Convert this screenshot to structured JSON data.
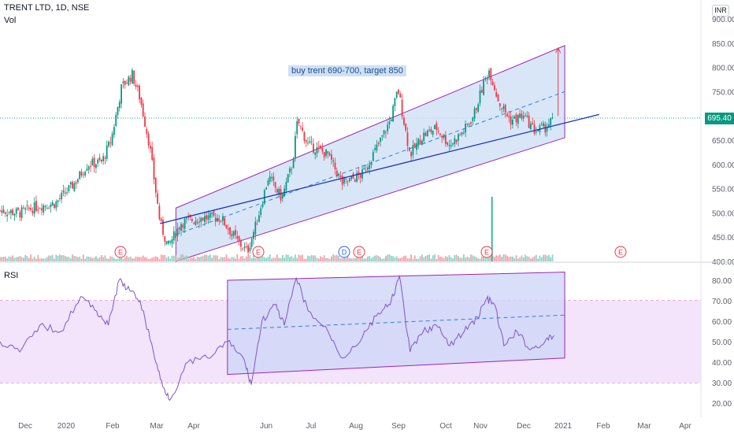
{
  "header": {
    "ticker": "TRENT LTD, 1D, NSE",
    "volume_label": "Vol",
    "rsi_label": "RSI",
    "currency": "INR",
    "last_price": "695.40"
  },
  "annotation": {
    "text": "buy trent 690-700, target 850"
  },
  "colors": {
    "up": "#089981",
    "down": "#f23645",
    "channel_fill": "#cfe0f6",
    "channel_border": "#9c27b0",
    "trendline": "#1f2fc6",
    "rsi_line": "#7e57c2",
    "rsi_band": "#f3e3fb",
    "price_line": "#26a69a"
  },
  "chart_data": [
    {
      "type": "candlestick",
      "title": "TRENT LTD, 1D, NSE",
      "x_axis_labels": [
        "Dec",
        "2020",
        "Feb",
        "Mar",
        "Apr",
        "Jun",
        "Jul",
        "Aug",
        "Sep",
        "Oct",
        "Nov",
        "Dec",
        "2021",
        "Feb",
        "Mar",
        "Apr"
      ],
      "y_axis_ticks": [
        "900.00",
        "850.00",
        "800.00",
        "750.00",
        "700.00",
        "650.00",
        "600.00",
        "550.00",
        "500.00",
        "450.00",
        "400.00"
      ],
      "ylim": [
        400,
        900
      ],
      "last_close": 695.4,
      "price_path": [
        {
          "x": "2019-11-20",
          "y": 505
        },
        {
          "x": "2019-12-05",
          "y": 500
        },
        {
          "x": "2019-12-20",
          "y": 515
        },
        {
          "x": "2020-01-01",
          "y": 520
        },
        {
          "x": "2020-01-15",
          "y": 560
        },
        {
          "x": "2020-01-25",
          "y": 600
        },
        {
          "x": "2020-02-05",
          "y": 605
        },
        {
          "x": "2020-02-12",
          "y": 650
        },
        {
          "x": "2020-02-20",
          "y": 760
        },
        {
          "x": "2020-02-28",
          "y": 785
        },
        {
          "x": "2020-03-05",
          "y": 735
        },
        {
          "x": "2020-03-12",
          "y": 640
        },
        {
          "x": "2020-03-20",
          "y": 480
        },
        {
          "x": "2020-03-26",
          "y": 430
        },
        {
          "x": "2020-04-05",
          "y": 480
        },
        {
          "x": "2020-04-20",
          "y": 490
        },
        {
          "x": "2020-05-05",
          "y": 490
        },
        {
          "x": "2020-05-18",
          "y": 440
        },
        {
          "x": "2020-05-25",
          "y": 420
        },
        {
          "x": "2020-06-01",
          "y": 480
        },
        {
          "x": "2020-06-10",
          "y": 575
        },
        {
          "x": "2020-06-20",
          "y": 530
        },
        {
          "x": "2020-06-28",
          "y": 600
        },
        {
          "x": "2020-07-02",
          "y": 690
        },
        {
          "x": "2020-07-10",
          "y": 640
        },
        {
          "x": "2020-07-25",
          "y": 620
        },
        {
          "x": "2020-08-05",
          "y": 560
        },
        {
          "x": "2020-08-20",
          "y": 580
        },
        {
          "x": "2020-09-01",
          "y": 640
        },
        {
          "x": "2020-09-10",
          "y": 690
        },
        {
          "x": "2020-09-16",
          "y": 755
        },
        {
          "x": "2020-09-25",
          "y": 620
        },
        {
          "x": "2020-10-05",
          "y": 660
        },
        {
          "x": "2020-10-15",
          "y": 675
        },
        {
          "x": "2020-10-25",
          "y": 640
        },
        {
          "x": "2020-11-05",
          "y": 670
        },
        {
          "x": "2020-11-12",
          "y": 700
        },
        {
          "x": "2020-11-20",
          "y": 770
        },
        {
          "x": "2020-11-24",
          "y": 795
        },
        {
          "x": "2020-12-01",
          "y": 730
        },
        {
          "x": "2020-12-10",
          "y": 690
        },
        {
          "x": "2020-12-20",
          "y": 700
        },
        {
          "x": "2020-12-28",
          "y": 670
        },
        {
          "x": "2021-01-05",
          "y": 675
        },
        {
          "x": "2021-01-12",
          "y": 695.4
        }
      ],
      "volume_spike": {
        "x": "2020-11-26",
        "relative_height": 1.0
      },
      "earnings_markers": [
        "E",
        "E",
        "D",
        "E",
        "E",
        "E"
      ]
    },
    {
      "type": "line",
      "title": "RSI",
      "y_axis_ticks": [
        "80.00",
        "70.00",
        "60.00",
        "50.00",
        "40.00",
        "30.00",
        "20.00"
      ],
      "ylim": [
        15,
        85
      ],
      "reference_lines": [
        70,
        30
      ],
      "values": [
        {
          "x": "2019-11-20",
          "y": 50
        },
        {
          "x": "2019-12-05",
          "y": 45
        },
        {
          "x": "2019-12-20",
          "y": 58
        },
        {
          "x": "2020-01-05",
          "y": 55
        },
        {
          "x": "2020-01-20",
          "y": 72
        },
        {
          "x": "2020-02-01",
          "y": 65
        },
        {
          "x": "2020-02-10",
          "y": 58
        },
        {
          "x": "2020-02-18",
          "y": 80
        },
        {
          "x": "2020-02-26",
          "y": 75
        },
        {
          "x": "2020-03-05",
          "y": 70
        },
        {
          "x": "2020-03-15",
          "y": 45
        },
        {
          "x": "2020-03-22",
          "y": 28
        },
        {
          "x": "2020-03-28",
          "y": 22
        },
        {
          "x": "2020-04-10",
          "y": 40
        },
        {
          "x": "2020-04-25",
          "y": 42
        },
        {
          "x": "2020-05-10",
          "y": 50
        },
        {
          "x": "2020-05-22",
          "y": 42
        },
        {
          "x": "2020-05-28",
          "y": 29
        },
        {
          "x": "2020-06-05",
          "y": 60
        },
        {
          "x": "2020-06-15",
          "y": 68
        },
        {
          "x": "2020-06-22",
          "y": 58
        },
        {
          "x": "2020-07-01",
          "y": 81
        },
        {
          "x": "2020-07-10",
          "y": 65
        },
        {
          "x": "2020-07-25",
          "y": 55
        },
        {
          "x": "2020-08-05",
          "y": 42
        },
        {
          "x": "2020-08-20",
          "y": 52
        },
        {
          "x": "2020-09-01",
          "y": 64
        },
        {
          "x": "2020-09-10",
          "y": 68
        },
        {
          "x": "2020-09-17",
          "y": 82
        },
        {
          "x": "2020-09-25",
          "y": 45
        },
        {
          "x": "2020-10-05",
          "y": 55
        },
        {
          "x": "2020-10-15",
          "y": 58
        },
        {
          "x": "2020-10-25",
          "y": 48
        },
        {
          "x": "2020-11-05",
          "y": 55
        },
        {
          "x": "2020-11-15",
          "y": 62
        },
        {
          "x": "2020-11-22",
          "y": 71
        },
        {
          "x": "2020-11-28",
          "y": 68
        },
        {
          "x": "2020-12-05",
          "y": 48
        },
        {
          "x": "2020-12-15",
          "y": 55
        },
        {
          "x": "2020-12-25",
          "y": 46
        },
        {
          "x": "2021-01-05",
          "y": 50
        },
        {
          "x": "2021-01-12",
          "y": 53
        }
      ]
    }
  ]
}
